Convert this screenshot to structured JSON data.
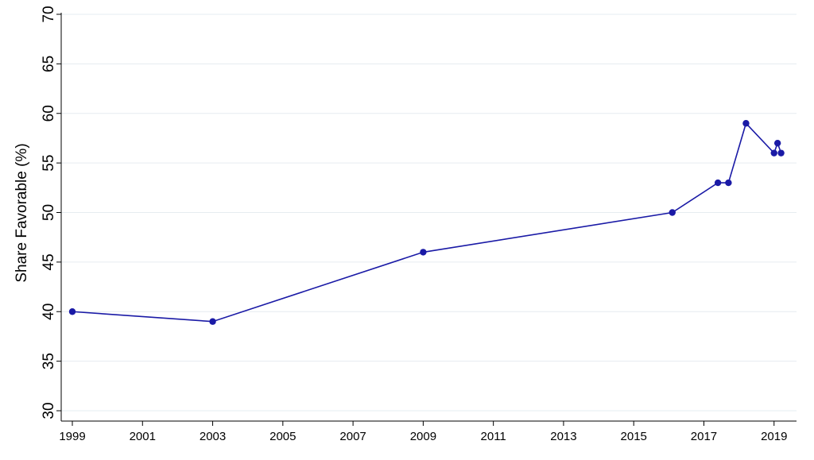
{
  "chart_data": {
    "type": "line",
    "title": "",
    "xlabel": "",
    "ylabel": "Share Favorable (%)",
    "xlim": [
      1999,
      2019.3
    ],
    "ylim": [
      30,
      70
    ],
    "x_ticks": [
      1999,
      2001,
      2003,
      2005,
      2007,
      2009,
      2011,
      2013,
      2015,
      2017,
      2019
    ],
    "y_ticks": [
      30,
      35,
      40,
      45,
      50,
      55,
      60,
      65,
      70
    ],
    "grid": true,
    "line_color": "#1a1aa6",
    "series": [
      {
        "x": [
          1999.0,
          2003.0,
          2009.0,
          2016.1,
          2017.4,
          2017.7,
          2018.2,
          2019.0,
          2019.1,
          2019.2
        ],
        "y": [
          40,
          39,
          46,
          50,
          53,
          53,
          59,
          56,
          57,
          56
        ]
      }
    ]
  }
}
